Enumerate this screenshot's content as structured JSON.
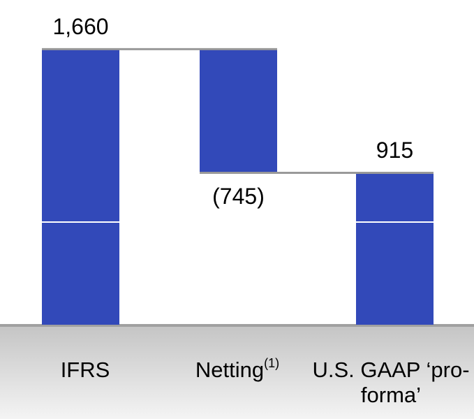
{
  "chart_data": {
    "type": "waterfall",
    "categories": [
      "IFRS",
      "Netting",
      "U.S. GAAP ‘pro-forma’"
    ],
    "category_notes": [
      null,
      "(1)",
      null
    ],
    "values": [
      1660,
      -745,
      915
    ],
    "value_labels": [
      "1,660",
      "(745)",
      "915"
    ],
    "measure": [
      "absolute",
      "relative",
      "total"
    ],
    "color": "#3249b9",
    "connector_color": "#999999",
    "ylim": [
      0,
      1750
    ]
  }
}
